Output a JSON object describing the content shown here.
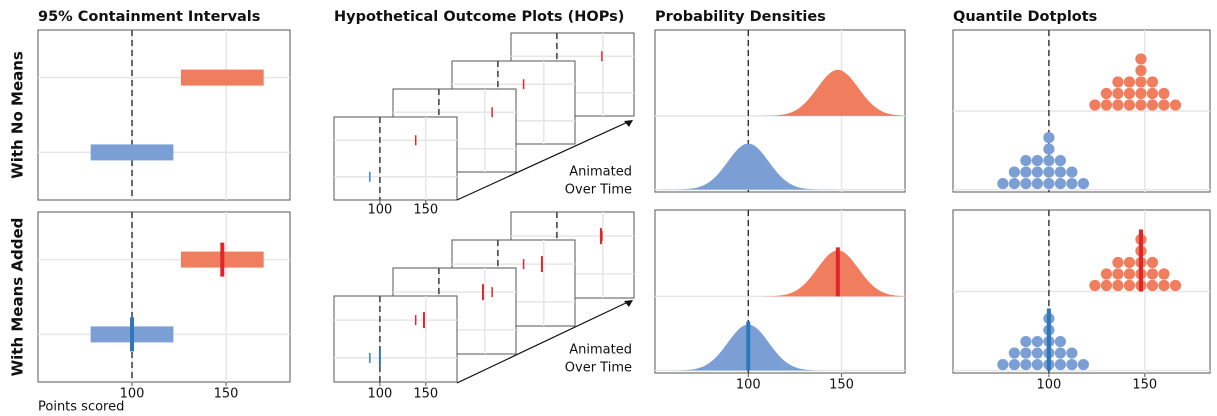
{
  "columns": [
    "95% Containment Intervals",
    "Hypothetical Outcome Plots (HOPs)",
    "Probability Densities",
    "Quantile Dotplots"
  ],
  "rows": [
    "With No Means",
    "With Means Added"
  ],
  "x_label": "Points scored",
  "annotation": [
    "Animated",
    "Over Time"
  ],
  "xlim": [
    50,
    184
  ],
  "xticks": [
    100,
    150
  ],
  "grid": true,
  "reference_line": 100,
  "groups": [
    {
      "color": "#7b9fd4",
      "mean_color": "#2f78b8",
      "draw_color": "#3d7fc6",
      "mean": 100,
      "sd": 11,
      "interval": [
        78,
        122
      ],
      "dots": [
        76,
        82,
        82,
        88,
        88,
        88,
        94,
        94,
        94,
        100,
        100,
        100,
        100,
        100,
        106,
        106,
        106,
        112,
        112,
        118
      ]
    },
    {
      "color": "#ef7d5e",
      "mean_color": "#e0262b",
      "draw_color": "#e3262a",
      "mean": 148,
      "sd": 11,
      "interval": [
        126,
        170
      ],
      "dots": [
        124,
        130,
        130,
        136,
        136,
        136,
        142,
        142,
        142,
        148,
        148,
        148,
        148,
        148,
        154,
        154,
        154,
        160,
        160,
        166
      ]
    }
  ],
  "hops_frames": [
    [
      89,
      139
    ],
    [
      105,
      158
    ],
    [
      95,
      128
    ],
    [
      110,
      149
    ]
  ]
}
